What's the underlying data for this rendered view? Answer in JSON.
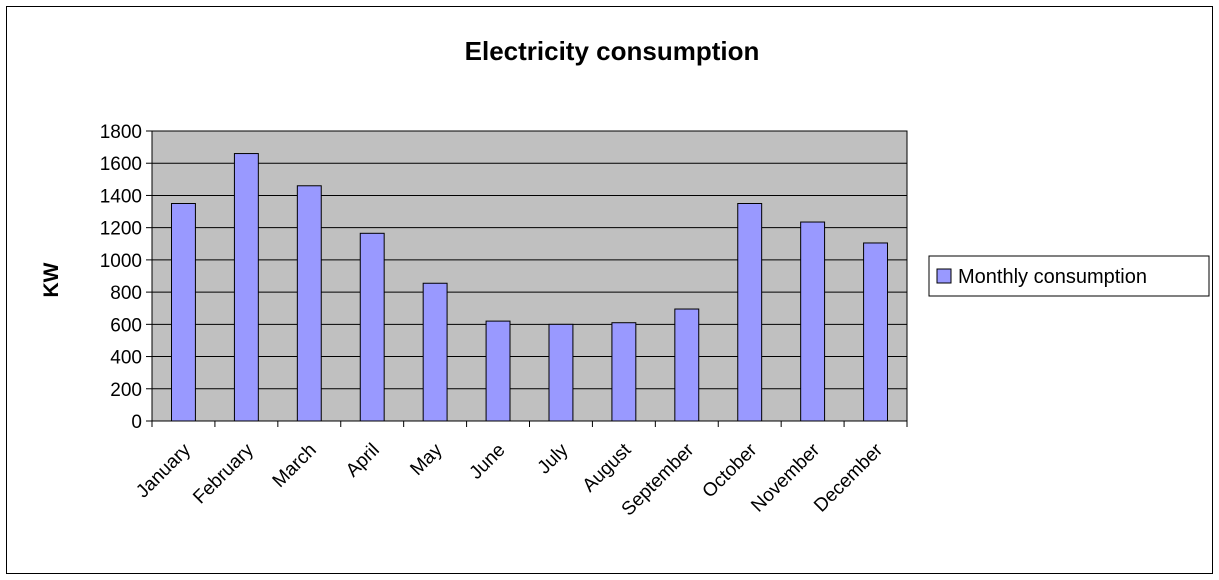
{
  "chart_data": {
    "type": "bar",
    "title": "Electricity consumption",
    "xlabel": "",
    "ylabel": "KW",
    "categories": [
      "January",
      "February",
      "March",
      "April",
      "May",
      "June",
      "July",
      "August",
      "September",
      "October",
      "November",
      "December"
    ],
    "series": [
      {
        "name": "Monthly consumption",
        "values": [
          1350,
          1660,
          1460,
          1165,
          855,
          620,
          600,
          610,
          695,
          1350,
          1235,
          1105
        ]
      }
    ],
    "ylim": [
      0,
      1800
    ],
    "yticks": [
      0,
      200,
      400,
      600,
      800,
      1000,
      1200,
      1400,
      1600,
      1800
    ],
    "grid": true,
    "legend": "right",
    "colors": {
      "bar": "#9999ff",
      "plot_background": "#c0c0c0",
      "gridline": "#000000",
      "border": "#000000"
    }
  }
}
